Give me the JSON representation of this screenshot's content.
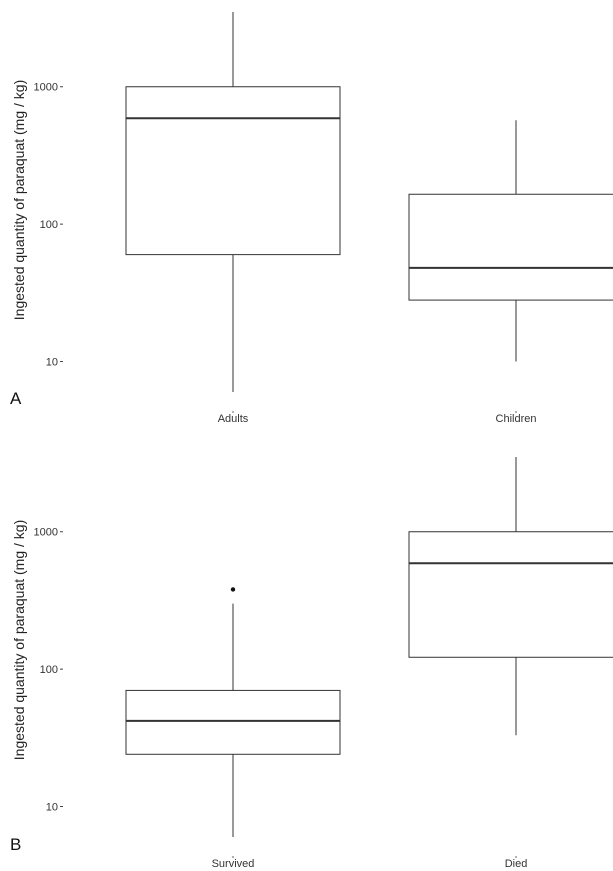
{
  "chart_data": [
    {
      "type": "box",
      "panel_label": "A",
      "ylabel": "Ingested quantity of paraquat (mg / kg)",
      "yscale": "log",
      "ylim": [
        6,
        3500
      ],
      "yticks": [
        10,
        100,
        1000
      ],
      "ytick_labels": [
        "10",
        "100",
        "1000"
      ],
      "grid": false,
      "categories": [
        "Adults",
        "Children"
      ],
      "boxes": [
        {
          "category": "Adults",
          "whisker_low": 6,
          "q1": 60,
          "median": 590,
          "q3": 1000,
          "whisker_high": 3500,
          "outliers": []
        },
        {
          "category": "Children",
          "whisker_low": 10,
          "q1": 28,
          "median": 48,
          "q3": 165,
          "whisker_high": 570,
          "outliers": []
        }
      ]
    },
    {
      "type": "box",
      "panel_label": "B",
      "ylabel": "Ingested quantity of paraquat (mg / kg)",
      "yscale": "log",
      "ylim": [
        6,
        3500
      ],
      "yticks": [
        10,
        100,
        1000
      ],
      "ytick_labels": [
        "10",
        "100",
        "1000"
      ],
      "grid": false,
      "categories": [
        "Survived",
        "Died"
      ],
      "boxes": [
        {
          "category": "Survived",
          "whisker_low": 6,
          "q1": 24,
          "median": 42,
          "q3": 70,
          "whisker_high": 300,
          "outliers": [
            380
          ]
        },
        {
          "category": "Died",
          "whisker_low": 33,
          "q1": 122,
          "median": 590,
          "q3": 1000,
          "whisker_high": 3500,
          "outliers": []
        }
      ]
    }
  ]
}
